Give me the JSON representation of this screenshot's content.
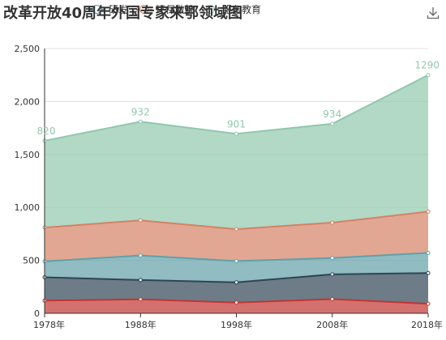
{
  "chart_data": {
    "type": "area",
    "stacked": true,
    "title": "改革开放40周年外国专家来鄂领域图",
    "categories": [
      "1978年",
      "1988年",
      "1998年",
      "2008年",
      "2018年"
    ],
    "ylim": [
      0,
      2500
    ],
    "yticks": [
      "0",
      "500",
      "1,000",
      "1,500",
      "2,000",
      "2,500"
    ],
    "ytick_values": [
      0,
      500,
      1000,
      1500,
      2000,
      2500
    ],
    "grid": true,
    "legend_position": "top",
    "series": [
      {
        "name": "",
        "color": "#c23531",
        "values": [
          120,
          132,
          101,
          134,
          90
        ]
      },
      {
        "name": "",
        "color": "#2f4554",
        "values": [
          220,
          182,
          191,
          234,
          290
        ]
      },
      {
        "name": "",
        "color": "#61a0a8",
        "values": [
          150,
          232,
          201,
          154,
          190
        ]
      },
      {
        "name": "环保救护",
        "color": "#d48265",
        "values": [
          320,
          332,
          301,
          334,
          390
        ]
      },
      {
        "name": "服务教育",
        "color": "#91c7ae",
        "values": [
          820,
          932,
          901,
          934,
          1290
        ]
      }
    ],
    "top_labels": [
      "820",
      "932",
      "901",
      "934",
      "1290"
    ]
  },
  "legend": {
    "visible_items": [
      {
        "label": "研发",
        "color": "#61a0a8"
      },
      {
        "label": "环保救护",
        "color": "#d48265"
      },
      {
        "label": "服务教育",
        "color": "#91c7ae"
      }
    ]
  },
  "toolbox": {
    "icon": "download-icon"
  }
}
